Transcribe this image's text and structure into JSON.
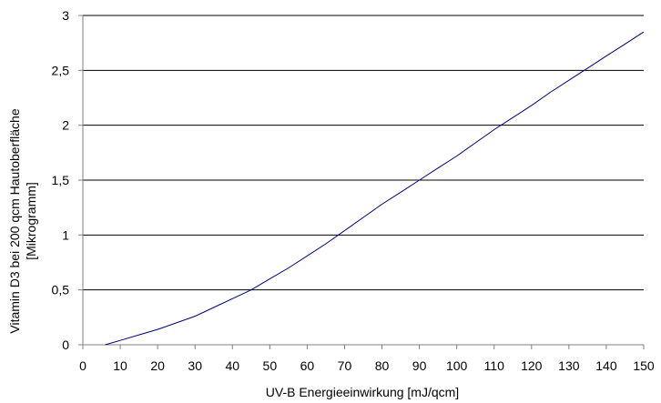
{
  "chart_data": {
    "type": "line",
    "xlabel": "UV-B Energieeinwirkung [mJ/qcm]",
    "ylabel_lines": [
      "Vitamin D3 bei 200 qcm Hautoberfläche",
      "[Mikrogramm]"
    ],
    "xlim": [
      0,
      150
    ],
    "ylim": [
      0,
      3
    ],
    "x_ticks": [
      0,
      10,
      20,
      30,
      40,
      50,
      60,
      70,
      80,
      90,
      100,
      110,
      120,
      130,
      140,
      150
    ],
    "x_tick_labels": [
      "0",
      "10",
      "20",
      "30",
      "40",
      "50",
      "60",
      "70",
      "80",
      "90",
      "100",
      "110",
      "120",
      "130",
      "140",
      "150"
    ],
    "y_ticks": [
      0,
      0.5,
      1,
      1.5,
      2,
      2.5,
      3
    ],
    "y_tick_labels": [
      "0",
      "0,5",
      "1",
      "1,5",
      "2",
      "2,5",
      "3"
    ],
    "grid": "horizontal",
    "line_color": "#000080",
    "series": [
      {
        "x": [
          6,
          10,
          15,
          20,
          25,
          30,
          35,
          40,
          45,
          50,
          55,
          60,
          65,
          70,
          75,
          80,
          85,
          90,
          95,
          100,
          105,
          110,
          115,
          120,
          125,
          130,
          135,
          140,
          145,
          150
        ],
        "y": [
          0,
          0.04,
          0.09,
          0.14,
          0.2,
          0.26,
          0.34,
          0.42,
          0.5,
          0.6,
          0.7,
          0.81,
          0.92,
          1.04,
          1.16,
          1.28,
          1.39,
          1.5,
          1.61,
          1.72,
          1.84,
          1.96,
          2.07,
          2.18,
          2.3,
          2.41,
          2.52,
          2.63,
          2.74,
          2.85
        ]
      }
    ]
  }
}
